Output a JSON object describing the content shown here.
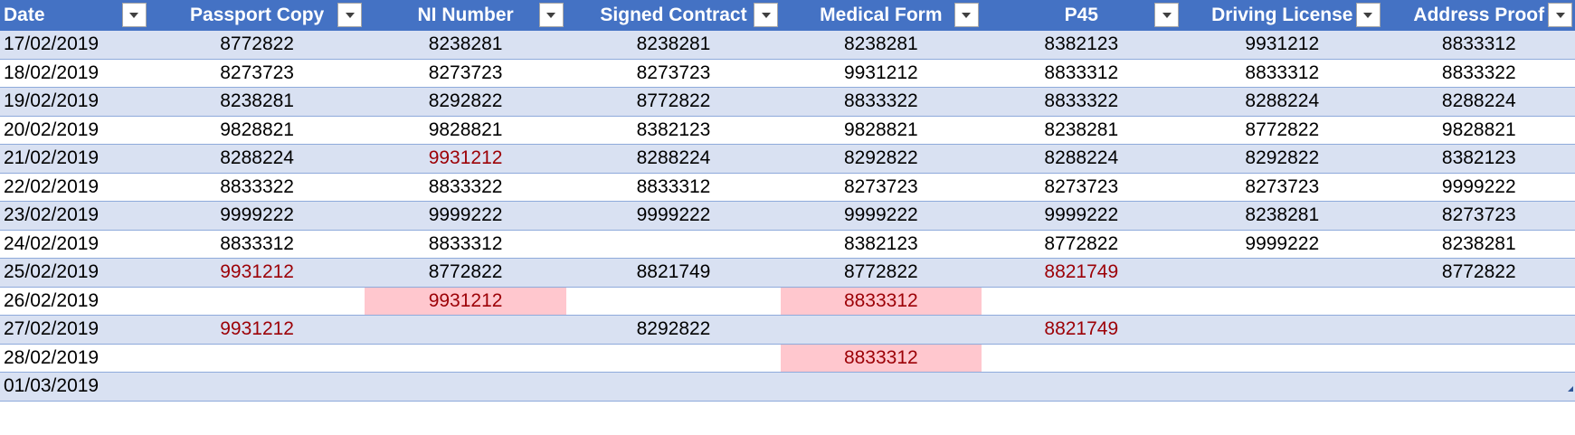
{
  "columns": [
    "Date",
    "Passport Copy",
    "NI Number",
    "Signed Contract",
    "Medical Form",
    "P45",
    "Driving License",
    "Address Proof"
  ],
  "colors": {
    "header_bg": "#4472c4",
    "band_bg": "#d9e1f2",
    "duplicate_bg": "#ffc7ce",
    "duplicate_text": "#9c0006"
  },
  "rows": [
    [
      "17/02/2019",
      "8772822",
      "8238281",
      "8238281",
      "8238281",
      "8382123",
      "9931212",
      "8833312"
    ],
    [
      "18/02/2019",
      "8273723",
      "8273723",
      "8273723",
      "9931212",
      "8833312",
      "8833312",
      "8833322"
    ],
    [
      "19/02/2019",
      "8238281",
      "8292822",
      "8772822",
      "8833322",
      "8833322",
      "8288224",
      "8288224"
    ],
    [
      "20/02/2019",
      "9828821",
      "9828821",
      "8382123",
      "9828821",
      "8238281",
      "8772822",
      "9828821"
    ],
    [
      "21/02/2019",
      "8288224",
      "9931212",
      "8288224",
      "8292822",
      "8288224",
      "8292822",
      "8382123"
    ],
    [
      "22/02/2019",
      "8833322",
      "8833322",
      "8833312",
      "8273723",
      "8273723",
      "8273723",
      "9999222"
    ],
    [
      "23/02/2019",
      "9999222",
      "9999222",
      "9999222",
      "9999222",
      "9999222",
      "8238281",
      "8273723"
    ],
    [
      "24/02/2019",
      "8833312",
      "8833312",
      "",
      "8382123",
      "8772822",
      "9999222",
      "8238281"
    ],
    [
      "25/02/2019",
      "9931212",
      "8772822",
      "8821749",
      "8772822",
      "8821749",
      "",
      "8772822"
    ],
    [
      "26/02/2019",
      "",
      "9931212",
      "",
      "8833312",
      "",
      "",
      ""
    ],
    [
      "27/02/2019",
      "9931212",
      "",
      "8292822",
      "",
      "8821749",
      "",
      ""
    ],
    [
      "28/02/2019",
      "",
      "",
      "",
      "8833312",
      "",
      "",
      ""
    ],
    [
      "01/03/2019",
      "",
      "",
      "",
      "",
      "",
      "",
      ""
    ]
  ],
  "duplicate_cells": [
    [
      4,
      2
    ],
    [
      8,
      1
    ],
    [
      8,
      5
    ],
    [
      9,
      2
    ],
    [
      9,
      4
    ],
    [
      10,
      1
    ],
    [
      10,
      5
    ],
    [
      11,
      4
    ]
  ]
}
